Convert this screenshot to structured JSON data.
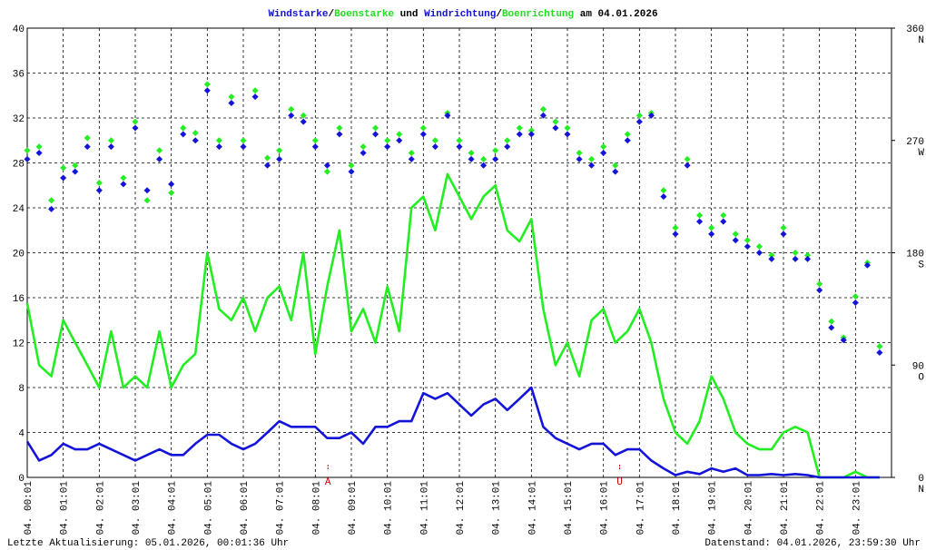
{
  "chart_data": {
    "type": "line",
    "title_parts": [
      {
        "text": "Windstarke",
        "color": "#1010d8"
      },
      {
        "text": "/",
        "color": "#000000"
      },
      {
        "text": "Boenstarke",
        "color": "#22dd22"
      },
      {
        "text": " und ",
        "color": "#000000"
      },
      {
        "text": "Windrichtung",
        "color": "#1010d8"
      },
      {
        "text": "/",
        "color": "#000000"
      },
      {
        "text": "Boenrichtung",
        "color": "#22dd22"
      },
      {
        "text": " am 04.01.2026",
        "color": "#000000"
      }
    ],
    "footer_left": "Letzte Aktualisierung: 05.01.2026, 00:01:36 Uhr",
    "footer_right": "Datenstand: 04.01.2026, 23:59:30 Uhr",
    "x": [
      0,
      0.33,
      0.67,
      1,
      1.33,
      1.67,
      2,
      2.33,
      2.67,
      3,
      3.33,
      3.67,
      4,
      4.33,
      4.67,
      5,
      5.33,
      5.67,
      6,
      6.33,
      6.67,
      7,
      7.33,
      7.67,
      8,
      8.33,
      8.67,
      9,
      9.33,
      9.67,
      10,
      10.33,
      10.67,
      11,
      11.33,
      11.67,
      12,
      12.33,
      12.67,
      13,
      13.33,
      13.67,
      14,
      14.33,
      14.67,
      15,
      15.33,
      15.67,
      16,
      16.33,
      16.67,
      17,
      17.33,
      17.67,
      18,
      18.33,
      18.67,
      19,
      19.33,
      19.67,
      20,
      20.33,
      20.67,
      21,
      21.33,
      21.67,
      22,
      22.33,
      22.67,
      23,
      23.33,
      23.67
    ],
    "xlim": [
      0,
      24
    ],
    "xticks": [
      {
        "value": 0,
        "label": "04. 00:01"
      },
      {
        "value": 1,
        "label": "04. 01:01"
      },
      {
        "value": 2,
        "label": "04. 02:01"
      },
      {
        "value": 3,
        "label": "04. 03:01"
      },
      {
        "value": 4,
        "label": "04. 04:01"
      },
      {
        "value": 5,
        "label": "04. 05:01"
      },
      {
        "value": 6,
        "label": "04. 06:01"
      },
      {
        "value": 7,
        "label": "04. 07:01"
      },
      {
        "value": 8,
        "label": "04. 08:01"
      },
      {
        "value": 9,
        "label": "04. 09:01"
      },
      {
        "value": 10,
        "label": "04. 10:01"
      },
      {
        "value": 11,
        "label": "04. 11:01"
      },
      {
        "value": 12,
        "label": "04. 12:01"
      },
      {
        "value": 13,
        "label": "04. 13:01"
      },
      {
        "value": 14,
        "label": "04. 14:01"
      },
      {
        "value": 15,
        "label": "04. 15:01"
      },
      {
        "value": 16,
        "label": "04. 16:01"
      },
      {
        "value": 17,
        "label": "04. 17:01"
      },
      {
        "value": 18,
        "label": "04. 18:01"
      },
      {
        "value": 19,
        "label": "04. 19:01"
      },
      {
        "value": 20,
        "label": "04. 20:01"
      },
      {
        "value": 21,
        "label": "04. 21:01"
      },
      {
        "value": 22,
        "label": "04. 22:01"
      },
      {
        "value": 23,
        "label": "04. 23:01"
      }
    ],
    "ylim": [
      0,
      40
    ],
    "yticks": [
      0,
      4,
      8,
      12,
      16,
      20,
      24,
      28,
      32,
      36,
      40
    ],
    "y2lim": [
      0,
      360
    ],
    "y2ticks": [
      0,
      90,
      180,
      270,
      360
    ],
    "y2tick_letters": [
      "N",
      "O",
      "S",
      "W",
      "N"
    ],
    "grid": true,
    "annotations": [
      {
        "text": "A",
        "x": 8.35,
        "color": "#cc0000"
      },
      {
        "text": "U",
        "x": 16.45,
        "color": "#cc0000"
      }
    ],
    "series": [
      {
        "name": "Boenstarke",
        "color": "#22ee22",
        "style": "line",
        "values": [
          15.5,
          10,
          9,
          14,
          12,
          10,
          8,
          13,
          8,
          9,
          8,
          13,
          8,
          10,
          11,
          20,
          15,
          14,
          16,
          13,
          16,
          17,
          14,
          20,
          11,
          17,
          22,
          13,
          15,
          12,
          17,
          13,
          24,
          25,
          22,
          27,
          25,
          23,
          25,
          26,
          22,
          21,
          23,
          15,
          10,
          12,
          9,
          14,
          15,
          12,
          13,
          15,
          12,
          7,
          4,
          3,
          5,
          9,
          7,
          4,
          3,
          2.5,
          2.5,
          4,
          4.5,
          4,
          0,
          0,
          0,
          0.5,
          0,
          0
        ]
      },
      {
        "name": "Windstarke",
        "color": "#1414d8",
        "style": "line",
        "values": [
          3.2,
          1.5,
          2,
          3,
          2.5,
          2.5,
          3,
          2.5,
          2,
          1.5,
          2,
          2.5,
          2,
          2,
          3,
          3.8,
          3.8,
          3,
          2.5,
          3,
          4,
          5,
          4.5,
          4.5,
          4.5,
          3.5,
          3.5,
          4,
          3,
          4.5,
          4.5,
          5,
          5,
          7.5,
          7,
          7.5,
          6.5,
          5.5,
          6.5,
          7,
          6,
          7,
          8,
          4.5,
          3.5,
          3,
          2.5,
          3,
          3,
          2,
          2.5,
          2.5,
          1.5,
          0.8,
          0.2,
          0.5,
          0.3,
          0.8,
          0.5,
          0.8,
          0.2,
          0.2,
          0.3,
          0.2,
          0.3,
          0.2,
          0,
          0,
          0,
          0,
          0,
          0
        ]
      },
      {
        "name": "Boenrichtung",
        "color": "#22ee22",
        "style": "dots",
        "axis": "y2",
        "values": [
          262,
          265,
          222,
          248,
          250,
          272,
          236,
          270,
          240,
          285,
          222,
          262,
          228,
          280,
          276,
          315,
          270,
          305,
          270,
          310,
          256,
          262,
          295,
          290,
          270,
          245,
          280,
          250,
          265,
          280,
          270,
          275,
          260,
          280,
          270,
          292,
          270,
          260,
          255,
          262,
          270,
          280,
          278,
          295,
          285,
          280,
          260,
          255,
          265,
          250,
          275,
          290,
          292,
          230,
          200,
          255,
          210,
          200,
          210,
          195,
          190,
          185,
          178,
          200,
          180,
          178,
          155,
          125,
          112,
          145,
          172,
          105
        ]
      },
      {
        "name": "Windrichtung",
        "color": "#1414d8",
        "style": "dots",
        "axis": "y2",
        "values": [
          255,
          260,
          215,
          240,
          245,
          265,
          230,
          265,
          235,
          280,
          230,
          255,
          235,
          275,
          270,
          310,
          265,
          300,
          265,
          305,
          250,
          255,
          290,
          285,
          265,
          250,
          275,
          245,
          260,
          275,
          265,
          270,
          255,
          275,
          265,
          290,
          265,
          255,
          250,
          255,
          265,
          275,
          275,
          290,
          280,
          275,
          255,
          250,
          260,
          245,
          270,
          285,
          290,
          225,
          195,
          250,
          205,
          195,
          205,
          190,
          185,
          180,
          175,
          195,
          175,
          175,
          150,
          120,
          110,
          140,
          170,
          100
        ]
      }
    ]
  }
}
